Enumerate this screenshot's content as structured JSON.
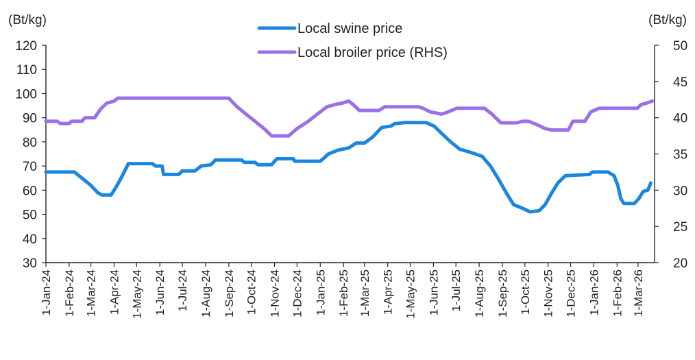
{
  "chart_data": {
    "type": "line",
    "left_axis_unit": "(Bt/kg)",
    "right_axis_unit": "(Bt/kg)",
    "y_left": {
      "min": 30,
      "max": 120,
      "ticks": [
        30,
        40,
        50,
        60,
        70,
        80,
        90,
        100,
        110,
        120
      ]
    },
    "y_right": {
      "min": 20,
      "max": 50,
      "ticks": [
        20,
        25,
        30,
        35,
        40,
        45,
        50
      ]
    },
    "x_range": [
      "2024-01-01",
      "2026-03-23"
    ],
    "x_ticks": [
      {
        "date": "2024-01-01",
        "label": "1-Jan-24"
      },
      {
        "date": "2024-02-01",
        "label": "1-Feb-24"
      },
      {
        "date": "2024-03-01",
        "label": "1-Mar-24"
      },
      {
        "date": "2024-04-01",
        "label": "1-Apr-24"
      },
      {
        "date": "2024-05-01",
        "label": "1-May-24"
      },
      {
        "date": "2024-06-01",
        "label": "1-Jun-24"
      },
      {
        "date": "2024-07-01",
        "label": "1-Jul-24"
      },
      {
        "date": "2024-08-01",
        "label": "1-Aug-24"
      },
      {
        "date": "2024-09-01",
        "label": "1-Sep-24"
      },
      {
        "date": "2024-10-01",
        "label": "1-Oct-24"
      },
      {
        "date": "2024-11-01",
        "label": "1-Nov-24"
      },
      {
        "date": "2024-12-01",
        "label": "1-Dec-24"
      },
      {
        "date": "2025-01-01",
        "label": "1-Jan-25"
      },
      {
        "date": "2025-02-01",
        "label": "1-Feb-25"
      },
      {
        "date": "2025-03-01",
        "label": "1-Mar-25"
      },
      {
        "date": "2025-04-01",
        "label": "1-Apr-25"
      },
      {
        "date": "2025-05-01",
        "label": "1-May-25"
      },
      {
        "date": "2025-06-01",
        "label": "1-Jun-25"
      },
      {
        "date": "2025-07-01",
        "label": "1-Jul-25"
      },
      {
        "date": "2025-08-01",
        "label": "1-Aug-25"
      },
      {
        "date": "2025-09-01",
        "label": "1-Sep-25"
      },
      {
        "date": "2025-10-01",
        "label": "1-Oct-25"
      },
      {
        "date": "2025-11-01",
        "label": "1-Nov-25"
      },
      {
        "date": "2025-12-01",
        "label": "1-Dec-25"
      },
      {
        "date": "2026-01-01",
        "label": "1-Jan-26"
      },
      {
        "date": "2026-02-01",
        "label": "1-Feb-26"
      },
      {
        "date": "2026-03-01",
        "label": "1-Mar-26"
      }
    ],
    "grid": false,
    "legend_position": "top-center",
    "series": [
      {
        "name": "Local swine price",
        "axis": "left",
        "color": "#1a86e0",
        "points": [
          [
            "2024-01-01",
            67.5
          ],
          [
            "2024-02-08",
            67.5
          ],
          [
            "2024-02-12",
            66.5
          ],
          [
            "2024-02-20",
            64.5
          ],
          [
            "2024-03-01",
            62.0
          ],
          [
            "2024-03-10",
            59.0
          ],
          [
            "2024-03-16",
            58.0
          ],
          [
            "2024-03-28",
            58.0
          ],
          [
            "2024-04-05",
            62.0
          ],
          [
            "2024-04-12",
            66.0
          ],
          [
            "2024-04-20",
            71.0
          ],
          [
            "2024-05-22",
            71.0
          ],
          [
            "2024-05-26",
            70.0
          ],
          [
            "2024-06-04",
            70.0
          ],
          [
            "2024-06-06",
            66.5
          ],
          [
            "2024-06-26",
            66.5
          ],
          [
            "2024-07-01",
            68.0
          ],
          [
            "2024-07-18",
            68.0
          ],
          [
            "2024-07-26",
            70.0
          ],
          [
            "2024-08-08",
            70.5
          ],
          [
            "2024-08-14",
            72.5
          ],
          [
            "2024-09-18",
            72.5
          ],
          [
            "2024-09-22",
            71.5
          ],
          [
            "2024-10-06",
            71.5
          ],
          [
            "2024-10-10",
            70.5
          ],
          [
            "2024-10-28",
            70.5
          ],
          [
            "2024-11-04",
            73.0
          ],
          [
            "2024-11-26",
            73.0
          ],
          [
            "2024-11-28",
            72.0
          ],
          [
            "2025-01-01",
            72.0
          ],
          [
            "2025-01-12",
            75.0
          ],
          [
            "2025-01-24",
            76.5
          ],
          [
            "2025-02-08",
            77.5
          ],
          [
            "2025-02-18",
            79.5
          ],
          [
            "2025-03-01",
            79.5
          ],
          [
            "2025-03-12",
            82.0
          ],
          [
            "2025-03-24",
            86.0
          ],
          [
            "2025-04-05",
            86.5
          ],
          [
            "2025-04-10",
            87.5
          ],
          [
            "2025-04-24",
            88.0
          ],
          [
            "2025-05-22",
            88.0
          ],
          [
            "2025-06-02",
            86.5
          ],
          [
            "2025-06-12",
            83.5
          ],
          [
            "2025-06-24",
            80.0
          ],
          [
            "2025-07-06",
            77.0
          ],
          [
            "2025-07-22",
            75.5
          ],
          [
            "2025-08-05",
            74.0
          ],
          [
            "2025-08-16",
            70.0
          ],
          [
            "2025-08-26",
            65.0
          ],
          [
            "2025-09-06",
            59.0
          ],
          [
            "2025-09-16",
            54.0
          ],
          [
            "2025-09-28",
            52.5
          ],
          [
            "2025-10-08",
            51.0
          ],
          [
            "2025-10-20",
            51.5
          ],
          [
            "2025-10-28",
            54.0
          ],
          [
            "2025-11-06",
            59.0
          ],
          [
            "2025-11-14",
            63.0
          ],
          [
            "2025-11-24",
            66.0
          ],
          [
            "2025-12-26",
            66.5
          ],
          [
            "2025-12-30",
            67.5
          ],
          [
            "2026-01-20",
            67.5
          ],
          [
            "2026-01-28",
            66.0
          ],
          [
            "2026-02-02",
            62.0
          ],
          [
            "2026-02-06",
            56.5
          ],
          [
            "2026-02-10",
            54.5
          ],
          [
            "2026-02-24",
            54.5
          ],
          [
            "2026-03-02",
            56.5
          ],
          [
            "2026-03-08",
            59.5
          ],
          [
            "2026-03-14",
            60.0
          ],
          [
            "2026-03-18",
            63.0
          ]
        ]
      },
      {
        "name": "Local broiler price (RHS)",
        "axis": "right",
        "color": "#9b6fe8",
        "points": [
          [
            "2024-01-01",
            39.5
          ],
          [
            "2024-01-16",
            39.5
          ],
          [
            "2024-01-20",
            39.2
          ],
          [
            "2024-02-01",
            39.2
          ],
          [
            "2024-02-04",
            39.5
          ],
          [
            "2024-02-18",
            39.5
          ],
          [
            "2024-02-22",
            40.0
          ],
          [
            "2024-03-06",
            40.0
          ],
          [
            "2024-03-14",
            41.2
          ],
          [
            "2024-03-22",
            42.0
          ],
          [
            "2024-04-01",
            42.3
          ],
          [
            "2024-04-06",
            42.7
          ],
          [
            "2024-09-01",
            42.7
          ],
          [
            "2024-09-12",
            41.5
          ],
          [
            "2024-09-24",
            40.5
          ],
          [
            "2024-10-06",
            39.5
          ],
          [
            "2024-10-18",
            38.5
          ],
          [
            "2024-10-28",
            37.5
          ],
          [
            "2024-11-20",
            37.5
          ],
          [
            "2024-12-01",
            38.5
          ],
          [
            "2024-12-16",
            39.5
          ],
          [
            "2024-12-28",
            40.5
          ],
          [
            "2025-01-10",
            41.5
          ],
          [
            "2025-01-20",
            41.8
          ],
          [
            "2025-01-30",
            42.0
          ],
          [
            "2025-02-08",
            42.3
          ],
          [
            "2025-02-14",
            41.8
          ],
          [
            "2025-02-22",
            41.0
          ],
          [
            "2025-03-20",
            41.0
          ],
          [
            "2025-03-28",
            41.5
          ],
          [
            "2025-05-12",
            41.5
          ],
          [
            "2025-05-18",
            41.3
          ],
          [
            "2025-05-28",
            40.8
          ],
          [
            "2025-06-12",
            40.5
          ],
          [
            "2025-06-18",
            40.7
          ],
          [
            "2025-07-02",
            41.3
          ],
          [
            "2025-08-08",
            41.3
          ],
          [
            "2025-08-18",
            40.5
          ],
          [
            "2025-08-30",
            39.3
          ],
          [
            "2025-09-20",
            39.3
          ],
          [
            "2025-09-28",
            39.5
          ],
          [
            "2025-10-06",
            39.5
          ],
          [
            "2025-10-18",
            39.0
          ],
          [
            "2025-10-28",
            38.5
          ],
          [
            "2025-11-06",
            38.3
          ],
          [
            "2025-11-28",
            38.3
          ],
          [
            "2025-12-04",
            39.5
          ],
          [
            "2025-12-20",
            39.5
          ],
          [
            "2025-12-28",
            40.8
          ],
          [
            "2026-01-08",
            41.3
          ],
          [
            "2026-02-28",
            41.3
          ],
          [
            "2026-03-05",
            41.8
          ],
          [
            "2026-03-12",
            42.0
          ],
          [
            "2026-03-20",
            42.3
          ]
        ]
      }
    ]
  }
}
